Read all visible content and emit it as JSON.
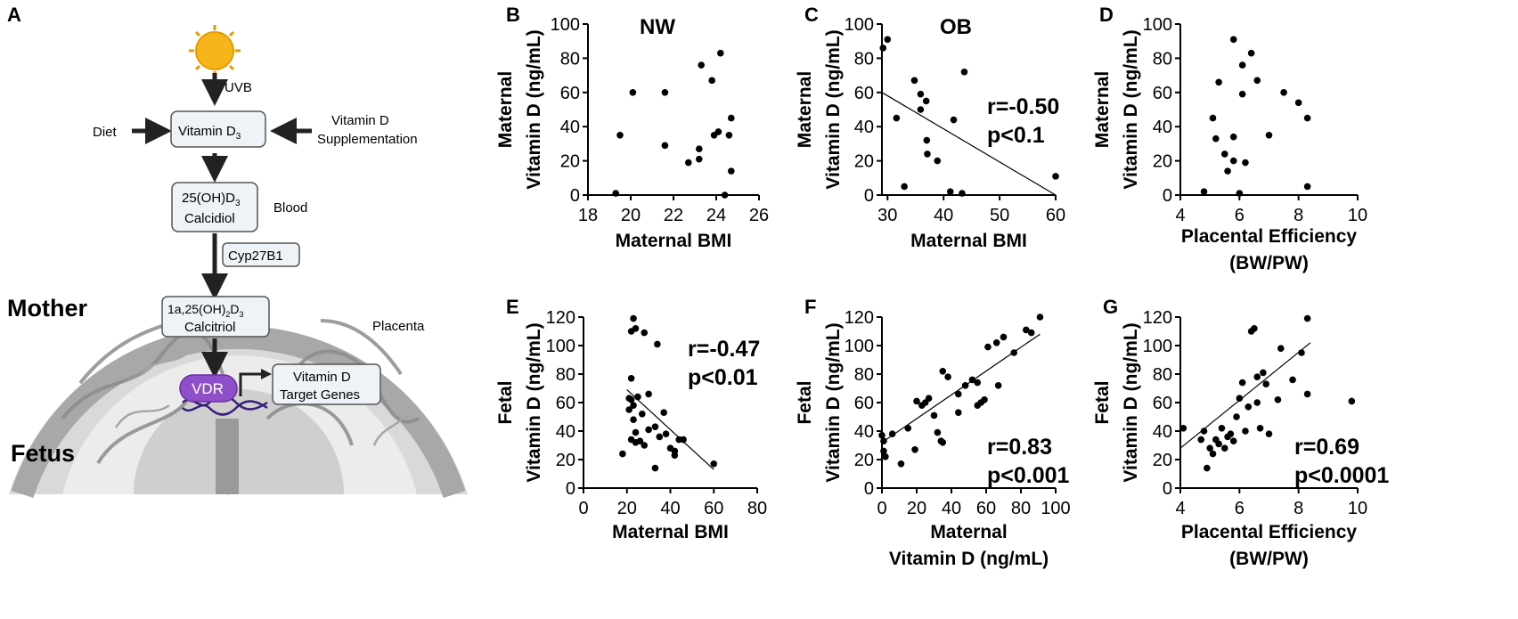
{
  "panel_a": {
    "letter": "A",
    "uvb": "UVB",
    "diet": "Diet",
    "supplementation_line1": "Vitamin D",
    "supplementation_line2": "Supplementation",
    "vitd3_main": "Vitamin D",
    "vitd3_sub": "3",
    "calcidiol_line1_a": "25(OH)D",
    "calcidiol_line1_sub": "3",
    "calcidiol_line2": "Calcidiol",
    "blood": "Blood",
    "enzyme": "Cyp27B1",
    "calcitriol_line1_a": "1a,25(OH)",
    "calcitriol_line1_sub2": "2",
    "calcitriol_line1_b": "D",
    "calcitriol_line1_sub3": "3",
    "calcitriol_line2": "Calcitriol",
    "mother": "Mother",
    "fetus": "Fetus",
    "placenta": "Placenta",
    "vdr": "VDR",
    "target_line1": "Vitamin D",
    "target_line2": "Target Genes",
    "colors": {
      "sun": "#F5B51B",
      "vdr": "#8F4FC9",
      "dna": "#3A1E7A",
      "arc": "#9E9E9E",
      "box": "#EEF3F8"
    }
  },
  "chart_data": [
    {
      "id": "B",
      "type": "scatter",
      "letter": "B",
      "group_label": "NW",
      "xlabel": [
        "Maternal BMI"
      ],
      "ylabel": [
        "Maternal",
        "Vitamin D (ng/mL)"
      ],
      "xlim": [
        18,
        26
      ],
      "ylim": [
        0,
        100
      ],
      "xticks": [
        "18",
        "20",
        "22",
        "24",
        "26"
      ],
      "yticks": [
        "0",
        "20",
        "40",
        "60",
        "80",
        "100"
      ],
      "points": [
        [
          19.3,
          1
        ],
        [
          19.5,
          35
        ],
        [
          20.1,
          60
        ],
        [
          21.6,
          60
        ],
        [
          21.6,
          29
        ],
        [
          22.7,
          19
        ],
        [
          23.2,
          21
        ],
        [
          23.2,
          27
        ],
        [
          23.3,
          76
        ],
        [
          23.8,
          67
        ],
        [
          23.9,
          35
        ],
        [
          24.1,
          37
        ],
        [
          24.2,
          83
        ],
        [
          24.4,
          0
        ],
        [
          24.6,
          35
        ],
        [
          24.7,
          45
        ],
        [
          24.7,
          14
        ]
      ],
      "fit": null,
      "stats": []
    },
    {
      "id": "C",
      "type": "scatter",
      "letter": "C",
      "group_label": "OB",
      "xlabel": [
        "Maternal BMI"
      ],
      "ylabel": [
        "Maternal",
        "Vitamin D (ng/mL)"
      ],
      "xlim": [
        29,
        60
      ],
      "ylim": [
        0,
        100
      ],
      "xticks": [
        "30",
        "40",
        "50",
        "60"
      ],
      "yticks": [
        "0",
        "20",
        "40",
        "60",
        "80",
        "100"
      ],
      "points": [
        [
          29.2,
          86
        ],
        [
          30,
          91
        ],
        [
          31.6,
          45
        ],
        [
          33,
          5
        ],
        [
          34.8,
          67
        ],
        [
          35.9,
          59
        ],
        [
          35.9,
          50
        ],
        [
          36.9,
          55
        ],
        [
          37,
          32
        ],
        [
          37.1,
          24
        ],
        [
          38.9,
          20
        ],
        [
          41.2,
          2
        ],
        [
          41.8,
          44
        ],
        [
          43.3,
          1
        ],
        [
          43.7,
          72
        ],
        [
          60,
          11
        ]
      ],
      "fit": [
        [
          29,
          60
        ],
        [
          60,
          0
        ]
      ],
      "stats": [
        "r=-0.50",
        "p<0.1"
      ]
    },
    {
      "id": "D",
      "type": "scatter",
      "letter": "D",
      "group_label": "",
      "xlabel": [
        "Placental Efficiency",
        "(BW/PW)"
      ],
      "ylabel": [
        "Maternal",
        "Vitamin D (ng/mL)"
      ],
      "xlim": [
        4,
        10
      ],
      "ylim": [
        0,
        100
      ],
      "xticks": [
        "4",
        "6",
        "8",
        "10"
      ],
      "yticks": [
        "0",
        "20",
        "40",
        "60",
        "80",
        "100"
      ],
      "points": [
        [
          4.8,
          2
        ],
        [
          5.1,
          45
        ],
        [
          5.2,
          33
        ],
        [
          5.3,
          66
        ],
        [
          5.5,
          24
        ],
        [
          5.6,
          14
        ],
        [
          5.8,
          34
        ],
        [
          5.8,
          20
        ],
        [
          5.8,
          91
        ],
        [
          6.0,
          1
        ],
        [
          6.1,
          76
        ],
        [
          6.1,
          59
        ],
        [
          6.2,
          19
        ],
        [
          6.4,
          83
        ],
        [
          6.6,
          67
        ],
        [
          7.0,
          35
        ],
        [
          7.5,
          60
        ],
        [
          8.0,
          54
        ],
        [
          8.3,
          45
        ],
        [
          8.3,
          5
        ]
      ],
      "fit": null,
      "stats": []
    },
    {
      "id": "E",
      "type": "scatter",
      "letter": "E",
      "group_label": "",
      "xlabel": [
        "Maternal BMI"
      ],
      "ylabel": [
        "Fetal",
        "Vitamin D (ng/mL)"
      ],
      "xlim": [
        0,
        80
      ],
      "ylim": [
        0,
        120
      ],
      "xticks": [
        "0",
        "20",
        "40",
        "60",
        "80"
      ],
      "yticks": [
        "0",
        "20",
        "40",
        "60",
        "80",
        "100",
        "120"
      ],
      "points": [
        [
          23,
          119
        ],
        [
          22,
          110
        ],
        [
          24,
          112
        ],
        [
          28,
          109
        ],
        [
          34,
          101
        ],
        [
          22,
          77
        ],
        [
          30,
          66
        ],
        [
          21,
          63
        ],
        [
          22,
          62
        ],
        [
          25,
          64
        ],
        [
          23,
          58
        ],
        [
          21,
          55
        ],
        [
          23,
          48
        ],
        [
          27,
          52
        ],
        [
          37,
          53
        ],
        [
          33,
          43
        ],
        [
          24,
          39
        ],
        [
          30,
          41
        ],
        [
          35,
          36
        ],
        [
          38,
          38
        ],
        [
          22,
          34
        ],
        [
          26,
          33
        ],
        [
          28,
          30
        ],
        [
          18,
          24
        ],
        [
          24,
          32
        ],
        [
          33,
          14
        ],
        [
          40,
          28
        ],
        [
          42,
          26
        ],
        [
          44,
          34
        ],
        [
          46,
          34
        ],
        [
          42,
          23
        ],
        [
          60,
          17
        ]
      ],
      "fit": [
        [
          20,
          69
        ],
        [
          60,
          13
        ]
      ],
      "stats": [
        "r=-0.47",
        "p<0.01"
      ]
    },
    {
      "id": "F",
      "type": "scatter",
      "letter": "F",
      "group_label": "",
      "xlabel": [
        "Maternal",
        "Vitamin D (ng/mL)"
      ],
      "ylabel": [
        "Fetal",
        "Vitamin D (ng/mL)"
      ],
      "xlim": [
        0,
        100
      ],
      "ylim": [
        0,
        120
      ],
      "xticks": [
        "0",
        "20",
        "40",
        "60",
        "80",
        "100"
      ],
      "yticks": [
        "0",
        "20",
        "40",
        "60",
        "80",
        "100",
        "120"
      ],
      "points": [
        [
          0,
          37
        ],
        [
          1,
          33
        ],
        [
          1,
          26
        ],
        [
          2,
          22
        ],
        [
          6,
          38
        ],
        [
          11,
          17
        ],
        [
          15,
          42
        ],
        [
          19,
          27
        ],
        [
          20,
          61
        ],
        [
          23,
          58
        ],
        [
          25,
          60
        ],
        [
          27,
          63
        ],
        [
          30,
          51
        ],
        [
          32,
          39
        ],
        [
          34,
          33
        ],
        [
          35,
          32
        ],
        [
          35,
          82
        ],
        [
          38,
          78
        ],
        [
          44,
          53
        ],
        [
          44,
          66
        ],
        [
          48,
          72
        ],
        [
          52,
          76
        ],
        [
          55,
          74
        ],
        [
          55,
          58
        ],
        [
          57,
          60
        ],
        [
          59,
          62
        ],
        [
          61,
          99
        ],
        [
          66,
          102
        ],
        [
          67,
          72
        ],
        [
          70,
          106
        ],
        [
          76,
          95
        ],
        [
          83,
          111
        ],
        [
          86,
          109
        ],
        [
          91,
          120
        ]
      ],
      "fit": [
        [
          0,
          32
        ],
        [
          91,
          108
        ]
      ],
      "stats": [
        "r=0.83",
        "p<0.001"
      ]
    },
    {
      "id": "G",
      "type": "scatter",
      "letter": "G",
      "group_label": "",
      "xlabel": [
        "Placental Efficiency",
        "(BW/PW)"
      ],
      "ylabel": [
        "Fetal",
        "Vitamin D (ng/mL)"
      ],
      "xlim": [
        4,
        10
      ],
      "ylim": [
        0,
        120
      ],
      "xticks": [
        "4",
        "6",
        "8",
        "10"
      ],
      "yticks": [
        "0",
        "20",
        "40",
        "60",
        "80",
        "100",
        "120"
      ],
      "points": [
        [
          4.1,
          42
        ],
        [
          4.7,
          34
        ],
        [
          4.8,
          40
        ],
        [
          4.9,
          14
        ],
        [
          5.0,
          28
        ],
        [
          5.1,
          24
        ],
        [
          5.2,
          34
        ],
        [
          5.3,
          31
        ],
        [
          5.4,
          42
        ],
        [
          5.5,
          28
        ],
        [
          5.6,
          36
        ],
        [
          5.7,
          38
        ],
        [
          5.8,
          33
        ],
        [
          5.9,
          50
        ],
        [
          6.0,
          63
        ],
        [
          6.1,
          74
        ],
        [
          6.2,
          40
        ],
        [
          6.3,
          57
        ],
        [
          6.4,
          110
        ],
        [
          6.5,
          112
        ],
        [
          6.6,
          60
        ],
        [
          6.6,
          78
        ],
        [
          6.7,
          42
        ],
        [
          6.8,
          81
        ],
        [
          6.9,
          73
        ],
        [
          7.0,
          38
        ],
        [
          7.3,
          62
        ],
        [
          7.4,
          98
        ],
        [
          7.8,
          76
        ],
        [
          8.1,
          95
        ],
        [
          8.3,
          119
        ],
        [
          8.3,
          66
        ],
        [
          9.8,
          61
        ]
      ],
      "fit": [
        [
          4,
          28
        ],
        [
          8.4,
          102
        ]
      ],
      "stats": [
        "r=0.69",
        "p<0.0001"
      ]
    }
  ]
}
